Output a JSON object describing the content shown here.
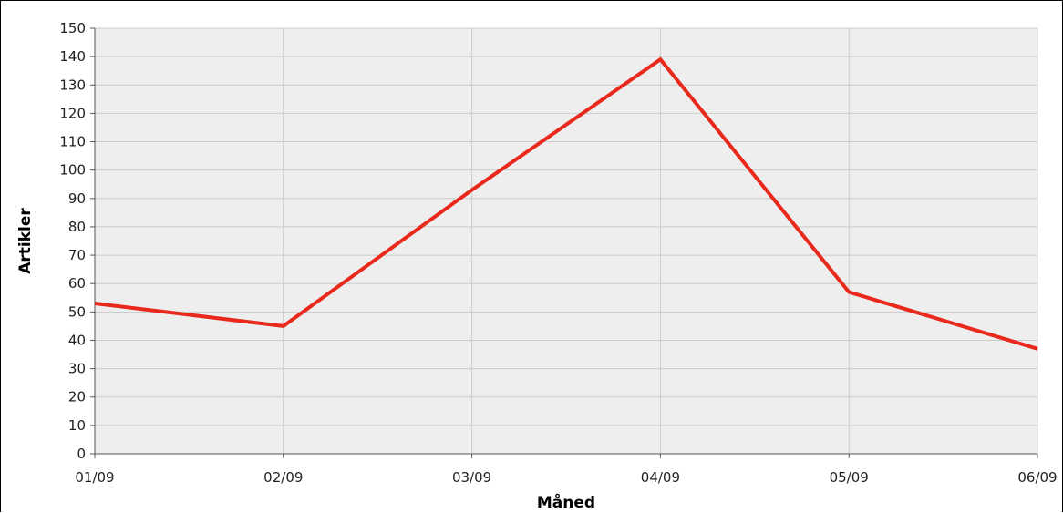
{
  "chart_data": {
    "type": "line",
    "title": "",
    "xlabel": "Måned",
    "ylabel": "Artikler",
    "categories": [
      "01/09",
      "02/09",
      "03/09",
      "04/09",
      "05/09",
      "06/09"
    ],
    "series": [
      {
        "values": [
          53,
          45,
          93,
          139,
          57,
          37
        ],
        "color": "#e8291c"
      }
    ],
    "ylim": [
      0,
      150
    ],
    "yticks": [
      0,
      10,
      20,
      30,
      40,
      50,
      60,
      70,
      80,
      90,
      100,
      110,
      120,
      130,
      140,
      150
    ],
    "grid": true,
    "plot_background": "#eeeeee",
    "grid_color": "#cccccc"
  }
}
